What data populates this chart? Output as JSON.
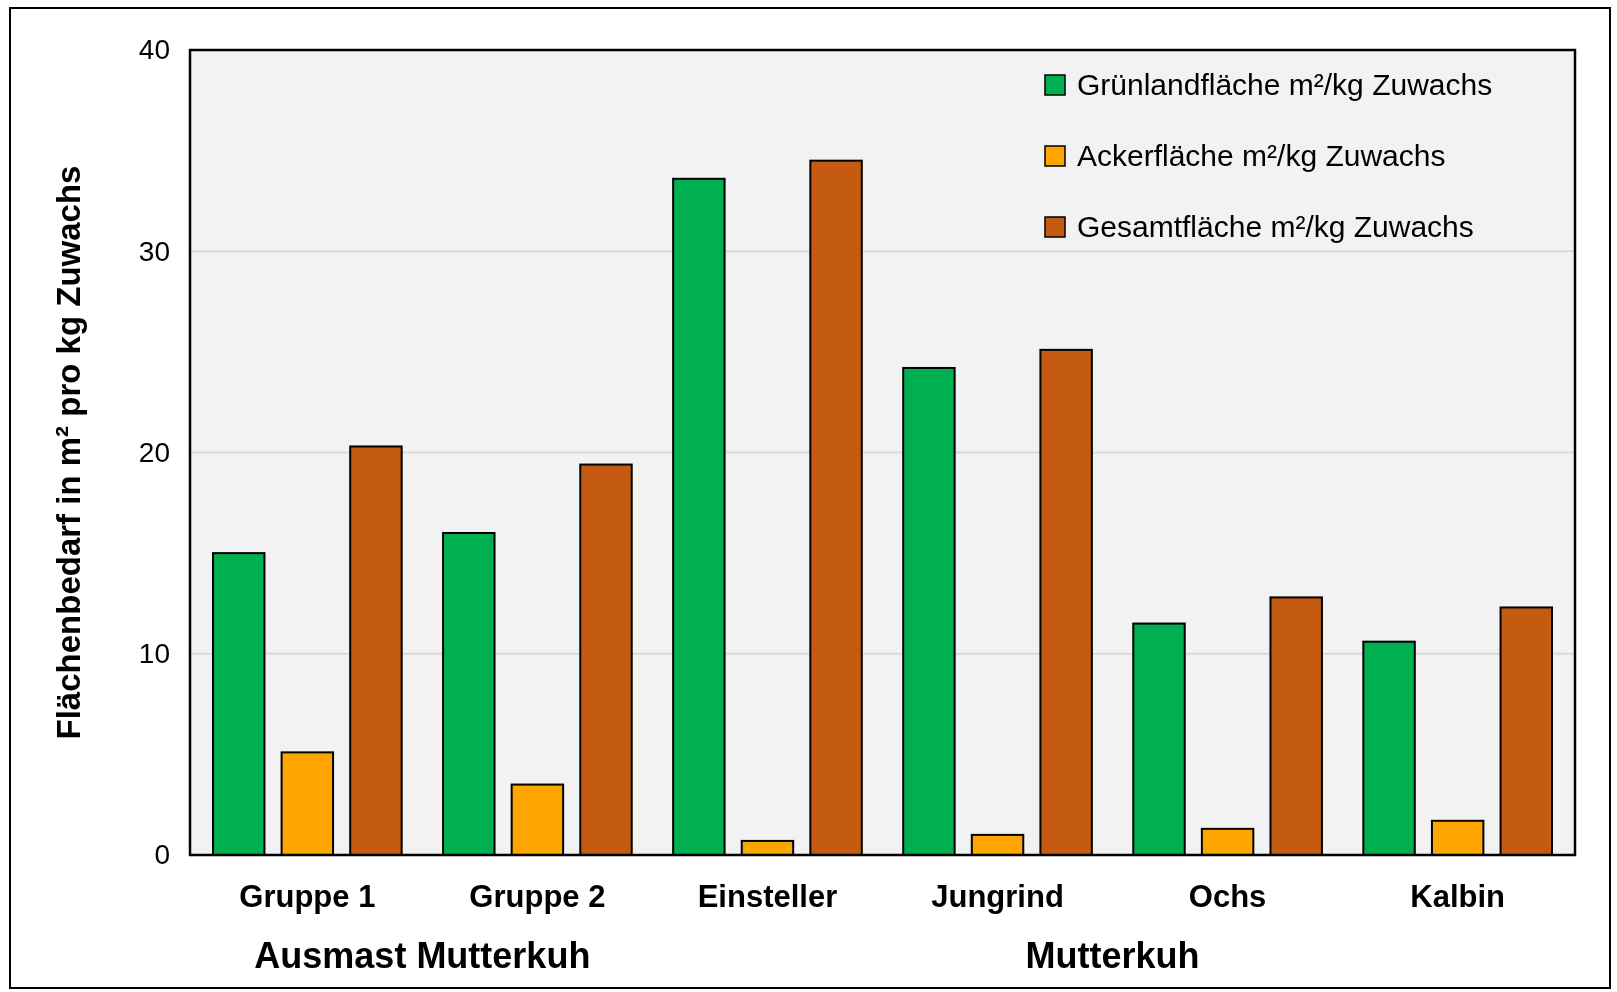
{
  "chart_data": {
    "type": "bar",
    "ylabel": "Flächenbedarf in m² pro kg Zuwachs",
    "categories": [
      "Gruppe 1",
      "Gruppe 2",
      "Einsteller",
      "Jungrind",
      "Ochs",
      "Kalbin"
    ],
    "series": [
      {
        "name": "Grünlandfläche m²/kg Zuwachs",
        "color": "#00b050",
        "values": [
          15.0,
          16.0,
          33.6,
          24.2,
          11.5,
          10.6
        ]
      },
      {
        "name": "Ackerfläche m²/kg Zuwachs",
        "color": "#ffa500",
        "values": [
          5.1,
          3.5,
          0.7,
          1.0,
          1.3,
          1.7
        ]
      },
      {
        "name": "Gesamtfläche m²/kg Zuwachs",
        "color": "#c55a11",
        "values": [
          20.3,
          19.4,
          34.5,
          25.1,
          12.8,
          12.3
        ]
      }
    ],
    "ylim": [
      0,
      40
    ],
    "yticks": [
      0,
      10,
      20,
      30,
      40
    ],
    "grid": "y",
    "legend": "top right",
    "annotations": [
      "Ausmast Mutterkuh",
      "Mutterkuh"
    ]
  }
}
